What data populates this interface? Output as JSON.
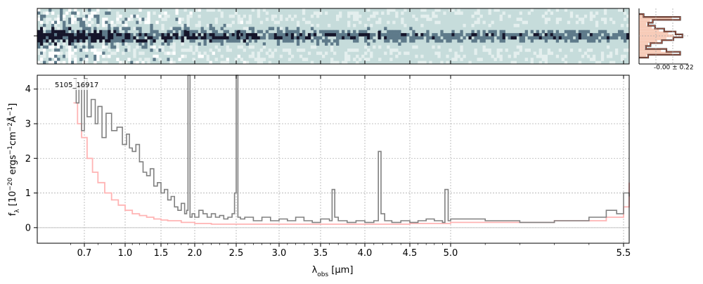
{
  "chart_data": [
    {
      "type": "heatmap",
      "panel": "2d-spectrum",
      "colormap": [
        "#15152a",
        "#5e7a8a",
        "#c6dcdb",
        "#ffffff"
      ],
      "background_color": "#c6dcdb",
      "ylim": [
        -1,
        1
      ],
      "note_ticks": true
    },
    {
      "type": "line",
      "panel": "1d-spectrum",
      "annotation": "5105_16917",
      "xlabel_parts": [
        "λ",
        "obs",
        " [μm]"
      ],
      "ylabel_parts": [
        "f",
        "λ",
        " [10",
        "−20",
        " ergs",
        "−1",
        "cm",
        "−2",
        "Å",
        "−1",
        "]"
      ],
      "x_ticks": [
        "0.7",
        "1.0",
        "1.5",
        "2.0",
        "2.5",
        "3.0",
        "3.5",
        "4.0",
        "4.5",
        "5.0",
        "5.5"
      ],
      "x_tick_values": [
        0.7,
        1.0,
        1.5,
        2.0,
        2.5,
        3.0,
        3.5,
        4.0,
        4.5,
        5.0,
        5.5
      ],
      "y_ticks": [
        "0",
        "1",
        "2",
        "3",
        "4"
      ],
      "y_tick_values": [
        0,
        1,
        2,
        3,
        4
      ],
      "ylim": [
        -0.45,
        4.4
      ],
      "xlim": [
        0.6,
        5.52
      ],
      "grid": true,
      "series": [
        {
          "color": "#808080",
          "x": [
            0.62,
            0.64,
            0.66,
            0.68,
            0.7,
            0.72,
            0.75,
            0.78,
            0.8,
            0.83,
            0.86,
            0.9,
            0.94,
            0.98,
            1.02,
            1.06,
            1.1,
            1.15,
            1.2,
            1.25,
            1.3,
            1.35,
            1.4,
            1.45,
            1.5,
            1.55,
            1.6,
            1.65,
            1.7,
            1.75,
            1.8,
            1.85,
            1.88,
            1.9,
            1.93,
            1.96,
            2.0,
            2.05,
            2.1,
            2.15,
            2.2,
            2.25,
            2.3,
            2.35,
            2.4,
            2.45,
            2.48,
            2.5,
            2.52,
            2.55,
            2.6,
            2.7,
            2.8,
            2.9,
            3.0,
            3.1,
            3.2,
            3.3,
            3.4,
            3.5,
            3.6,
            3.63,
            3.66,
            3.7,
            3.8,
            3.9,
            4.0,
            4.1,
            4.15,
            4.18,
            4.22,
            4.3,
            4.4,
            4.5,
            4.6,
            4.7,
            4.8,
            4.9,
            4.93,
            4.97,
            5.0,
            5.1,
            5.2,
            5.3,
            5.4,
            5.45,
            5.48,
            5.5,
            5.52
          ],
          "y": [
            4.3,
            3.6,
            4.1,
            2.8,
            4.3,
            3.2,
            3.7,
            3.0,
            3.5,
            2.6,
            3.3,
            2.8,
            2.9,
            2.4,
            2.7,
            2.3,
            2.2,
            2.4,
            1.9,
            1.6,
            1.5,
            1.7,
            1.2,
            1.3,
            1.0,
            1.1,
            0.8,
            0.9,
            0.6,
            0.5,
            0.7,
            0.4,
            0.5,
            4.4,
            0.3,
            0.4,
            0.3,
            0.5,
            0.4,
            0.3,
            0.4,
            0.3,
            0.35,
            0.25,
            0.3,
            0.4,
            1.0,
            4.4,
            0.3,
            0.25,
            0.3,
            0.2,
            0.3,
            0.2,
            0.25,
            0.2,
            0.3,
            0.2,
            0.15,
            0.25,
            0.2,
            1.1,
            0.3,
            0.2,
            0.15,
            0.2,
            0.15,
            0.2,
            2.2,
            0.4,
            0.2,
            0.15,
            0.2,
            0.15,
            0.2,
            0.25,
            0.2,
            0.15,
            1.1,
            0.2,
            0.25,
            0.2,
            0.15,
            0.2,
            0.3,
            0.5,
            0.4,
            1.0,
            0.9
          ]
        },
        {
          "color": "#ffb4b4",
          "x": [
            0.62,
            0.65,
            0.68,
            0.72,
            0.76,
            0.8,
            0.85,
            0.9,
            0.95,
            1.0,
            1.1,
            1.2,
            1.3,
            1.4,
            1.5,
            1.6,
            1.8,
            2.0,
            2.2,
            2.5,
            3.0,
            3.5,
            4.0,
            4.5,
            5.0,
            5.3,
            5.45,
            5.5,
            5.52
          ],
          "y": [
            3.6,
            3.0,
            2.6,
            2.0,
            1.6,
            1.3,
            1.0,
            0.8,
            0.65,
            0.5,
            0.4,
            0.35,
            0.3,
            0.25,
            0.22,
            0.2,
            0.15,
            0.12,
            0.1,
            0.1,
            0.1,
            0.1,
            0.1,
            0.12,
            0.15,
            0.2,
            0.3,
            0.6,
            1.3
          ]
        }
      ]
    },
    {
      "type": "histogram",
      "panel": "residual-histogram",
      "label": "-0.00 ± 0.22",
      "bin_values": [
        0.1,
        0.9,
        0.3,
        0.2,
        0.35,
        0.55,
        0.8,
        0.95,
        0.75,
        0.5,
        0.25,
        0.15,
        0.6,
        0.9,
        0.2
      ],
      "fill_color": "#f7cbb8",
      "line_colors": [
        "#2b2b2b",
        "#b85b45"
      ]
    }
  ]
}
